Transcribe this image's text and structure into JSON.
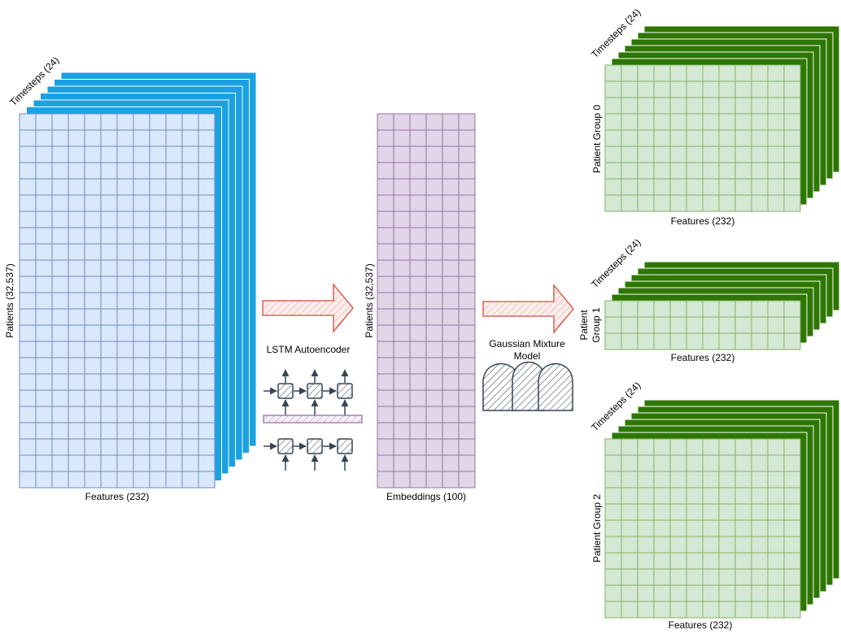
{
  "input": {
    "timesteps_label": "Timesteps (24)",
    "patients_label": "Patients (32,537)",
    "features_label": "Features (232)",
    "grid_fill": "#dae8fc",
    "grid_stroke": "#6c8ebf",
    "stack_fill": "#1ba1e2"
  },
  "encoder": {
    "label": "LSTM Autoencoder",
    "arrow_fill": "#fad9d5",
    "arrow_stroke": "#d64b3b"
  },
  "embeddings": {
    "patients_label": "Patients (32,537)",
    "embeddings_label": "Embeddings (100)",
    "grid_fill": "#e1d5e7",
    "grid_stroke": "#9673a6"
  },
  "clustering": {
    "label_line1": "Gaussian Mixture",
    "label_line2": "Model"
  },
  "groups": [
    {
      "timesteps_label": "Timesteps (24)",
      "name_line1": "Patient Group 0",
      "name_line2": "",
      "features_label": "Features (232)"
    },
    {
      "timesteps_label": "Timesteps (24)",
      "name_line1": "Patient",
      "name_line2": "Group 1",
      "features_label": "Features (232)"
    },
    {
      "timesteps_label": "Timesteps (24)",
      "name_line1": "Patient Group 2",
      "name_line2": "",
      "features_label": "Features (232)"
    }
  ],
  "group_style": {
    "grid_fill": "#d5e8d4",
    "grid_stroke": "#82b366",
    "stack_fill": "#2d7600"
  }
}
